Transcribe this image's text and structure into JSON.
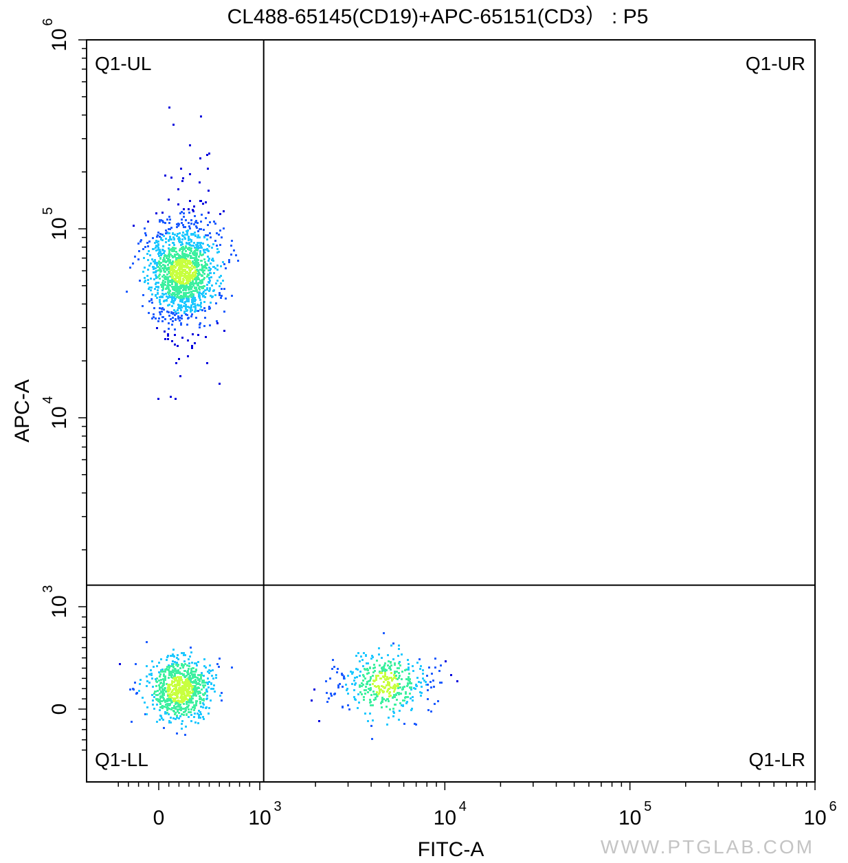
{
  "chart_data": {
    "type": "scatter",
    "title": "CL488-65145(CD19)+APC-65151(CD3） : P5",
    "xlabel": "FITC-A",
    "ylabel": "APC-A",
    "x_scale": "biexponential",
    "y_scale": "biexponential",
    "xlim": [
      -400,
      1000000
    ],
    "ylim": [
      -400,
      1000000
    ],
    "x_ticks": [
      {
        "value": 0,
        "base": "0",
        "exp": ""
      },
      {
        "value": 1000,
        "base": "10",
        "exp": "3"
      },
      {
        "value": 10000,
        "base": "10",
        "exp": "4"
      },
      {
        "value": 100000,
        "base": "10",
        "exp": "5"
      },
      {
        "value": 1000000,
        "base": "10",
        "exp": "6"
      }
    ],
    "y_ticks": [
      {
        "value": 0,
        "base": "0",
        "exp": ""
      },
      {
        "value": 1000,
        "base": "10",
        "exp": "3"
      },
      {
        "value": 10000,
        "base": "10",
        "exp": "4"
      },
      {
        "value": 100000,
        "base": "10",
        "exp": "5"
      },
      {
        "value": 1000000,
        "base": "10",
        "exp": "6"
      }
    ],
    "gate": {
      "x": 1050,
      "y": 1300
    },
    "quadrants": [
      {
        "label": "Q1-UL"
      },
      {
        "label": "Q1-UR"
      },
      {
        "label": "Q1-LL"
      },
      {
        "label": "Q1-LR"
      }
    ],
    "populations": [
      {
        "x_center": 230,
        "y_center": 60000,
        "x_spread": 170,
        "y_log_spread": 0.13,
        "count": 1400
      },
      {
        "x_center": 200,
        "y_center": 200,
        "x_spread": 160,
        "y_spread": 150,
        "count": 800
      },
      {
        "x_center": 4700,
        "y_center": 250,
        "x_log_spread": 0.13,
        "y_spread": 150,
        "count": 420
      }
    ],
    "density_colors": [
      "#0000dd",
      "#1d5cff",
      "#1fc8ff",
      "#3ef0a0",
      "#c8ff40"
    ],
    "grid": false,
    "legend": "none"
  },
  "watermark": "WWW.PTGLAB.COM"
}
